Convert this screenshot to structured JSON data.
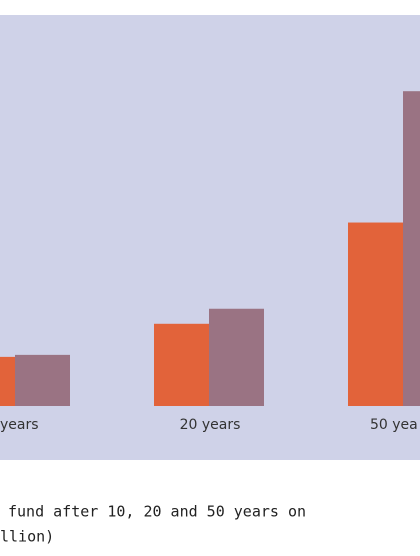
{
  "chart_data": {
    "type": "bar",
    "categories": [
      "years",
      "20 years",
      "50 yea"
    ],
    "series": [
      {
        "color": "#e2633a",
        "values": [
          49,
          82,
          183
        ]
      },
      {
        "color": "#9a7383",
        "values": [
          51,
          97,
          314
        ]
      }
    ],
    "ylim": [
      0,
      390
    ],
    "caption": [
      "fund after 10, 20 and 50 years on",
      "llion)"
    ]
  }
}
